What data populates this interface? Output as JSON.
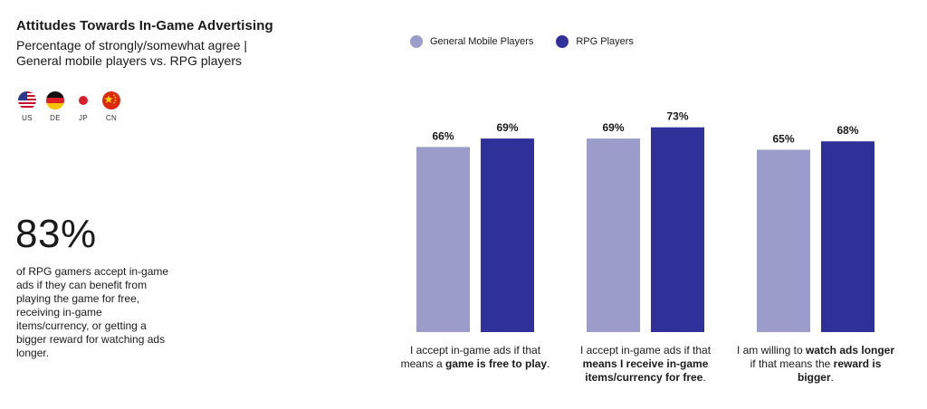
{
  "header": {
    "title": "Attitudes Towards In-Game Advertising",
    "subtitle_line1": "Percentage of strongly/somewhat agree |",
    "subtitle_line2": "General mobile players vs. RPG players"
  },
  "flags": [
    {
      "code": "US"
    },
    {
      "code": "DE"
    },
    {
      "code": "JP"
    },
    {
      "code": "CN"
    }
  ],
  "highlight": {
    "value": "83%",
    "description": "of RPG gamers accept in-game ads if they can benefit from playing the game for free, receiving in-game items/currency, or getting a bigger reward for watching ads longer."
  },
  "colors": {
    "general": "#9c9ccb",
    "rpg": "#30309a"
  },
  "chart_data": {
    "type": "bar",
    "title": "Attitudes Towards In-Game Advertising",
    "ylim": [
      0,
      100
    ],
    "legend_position": "top",
    "categories": [
      {
        "pre": "I accept in-game ads if that means a ",
        "bold": "game is free to play",
        "post": "."
      },
      {
        "pre": "I accept in-game ads if that ",
        "bold": "means I receive in-game items/currency for free",
        "post": "."
      },
      {
        "pre": "I am willing to ",
        "bold": "watch ads longer",
        "mid": " if that means the ",
        "bold2": "reward is bigger",
        "post": "."
      }
    ],
    "series": [
      {
        "name": "General Mobile Players",
        "values": [
          66,
          69,
          65
        ],
        "labels": [
          "66%",
          "69%",
          "65%"
        ]
      },
      {
        "name": "RPG Players",
        "values": [
          69,
          73,
          68
        ],
        "labels": [
          "69%",
          "73%",
          "68%"
        ]
      }
    ]
  }
}
